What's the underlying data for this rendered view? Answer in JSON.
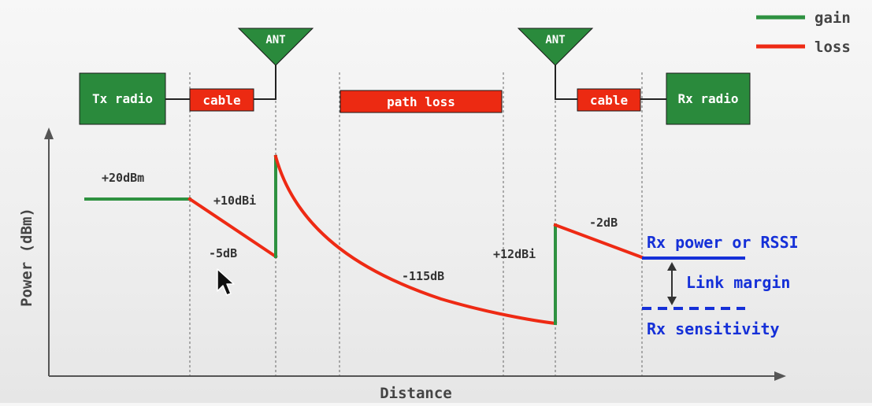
{
  "legend": {
    "gain": "gain",
    "loss": "loss"
  },
  "blocks": {
    "tx_radio": "Tx radio",
    "cable_tx": "cable",
    "ant_tx": "ANT",
    "path_loss": "path loss",
    "ant_rx": "ANT",
    "cable_rx": "cable",
    "rx_radio": "Rx radio"
  },
  "axes": {
    "y_label": "Power (dBm)",
    "x_label": "Distance"
  },
  "annotations": {
    "tx_power": "+20dBm",
    "tx_ant_gain": "+10dBi",
    "tx_cable_loss": "-5dB",
    "path_loss": "-115dB",
    "rx_ant_gain": "+12dBi",
    "rx_cable_loss": "-2dB",
    "rx_power": "Rx power or RSSI",
    "link_margin": "Link margin",
    "rx_sensitivity": "Rx sensitivity"
  },
  "colors": {
    "gain": "#2e9140",
    "loss": "#ee2a14",
    "block_green": "#2a8a3c",
    "block_red": "#ec2a12",
    "rx_text": "#1530d8",
    "axis": "#555555"
  }
}
